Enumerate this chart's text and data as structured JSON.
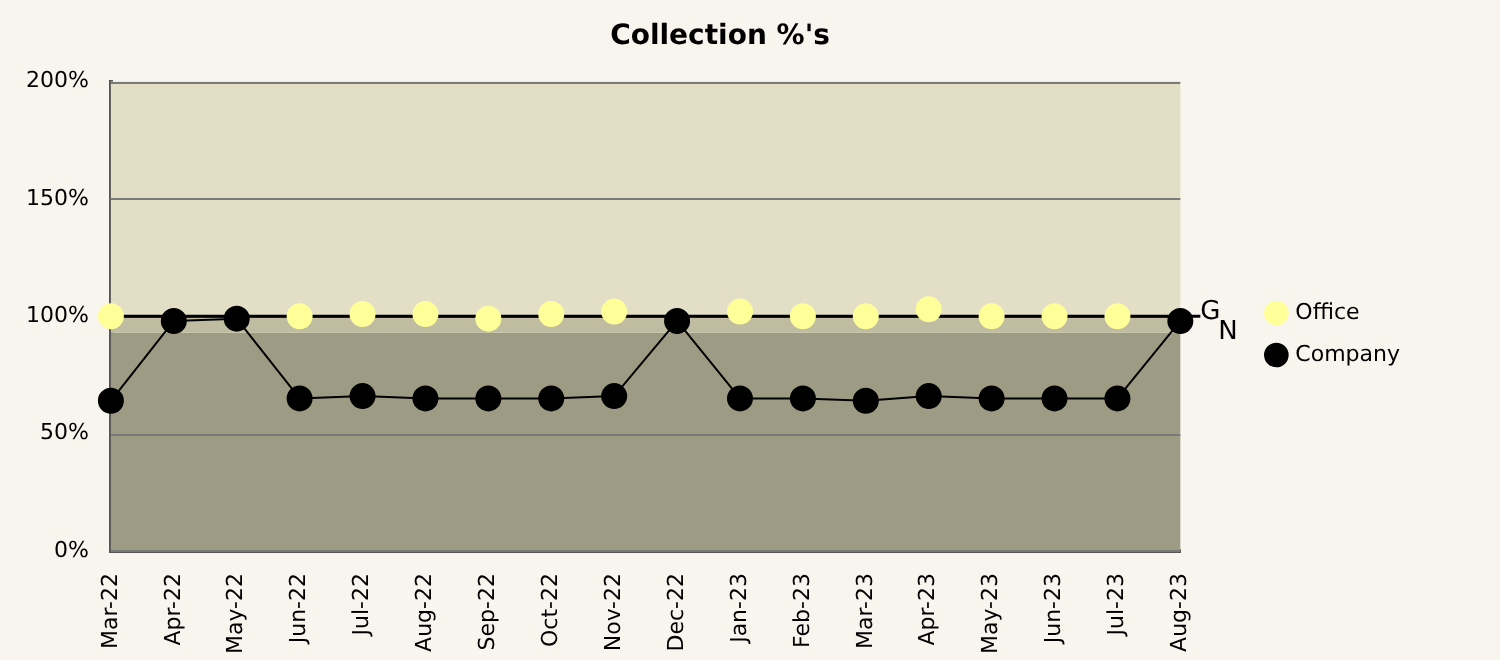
{
  "chart_data": {
    "type": "line",
    "title": "Collection %'s",
    "categories": [
      "Mar-22",
      "Apr-22",
      "May-22",
      "Jun-22",
      "Jul-22",
      "Aug-22",
      "Sep-22",
      "Oct-22",
      "Nov-22",
      "Dec-22",
      "Jan-23",
      "Feb-23",
      "Mar-23",
      "Apr-23",
      "May-23",
      "Jun-23",
      "Jul-23",
      "Aug-23"
    ],
    "series": [
      {
        "name": "Office",
        "type": "scatter",
        "color": "#ffff99",
        "values": [
          100,
          null,
          null,
          100,
          101,
          101,
          99,
          101,
          102,
          null,
          102,
          100,
          100,
          103,
          100,
          100,
          100,
          null
        ]
      },
      {
        "name": "Company",
        "type": "line",
        "color": "#000000",
        "values": [
          64,
          98,
          99,
          65,
          66,
          65,
          65,
          65,
          66,
          98,
          65,
          65,
          64,
          66,
          65,
          65,
          65,
          98
        ]
      }
    ],
    "ylim": [
      0,
      200
    ],
    "yticks": [
      {
        "value": 0,
        "label": "0%"
      },
      {
        "value": 50,
        "label": "50%"
      },
      {
        "value": 100,
        "label": "100%"
      },
      {
        "value": 150,
        "label": "150%"
      },
      {
        "value": 200,
        "label": "200%"
      }
    ],
    "grid": "y",
    "legend": "right",
    "marker": "circle",
    "bands": [
      {
        "axis": "y",
        "from": 0,
        "to": 93,
        "color": "#9e9b84"
      },
      {
        "axis": "y",
        "from": 93,
        "to": 100,
        "color": "#bfbca1",
        "label": "N"
      },
      {
        "axis": "y",
        "from": 100,
        "to": 200,
        "color": "#e3dfc7"
      }
    ],
    "ref_lines": [
      {
        "axis": "y",
        "value": 100,
        "label": "G",
        "color": "#000000"
      }
    ]
  }
}
